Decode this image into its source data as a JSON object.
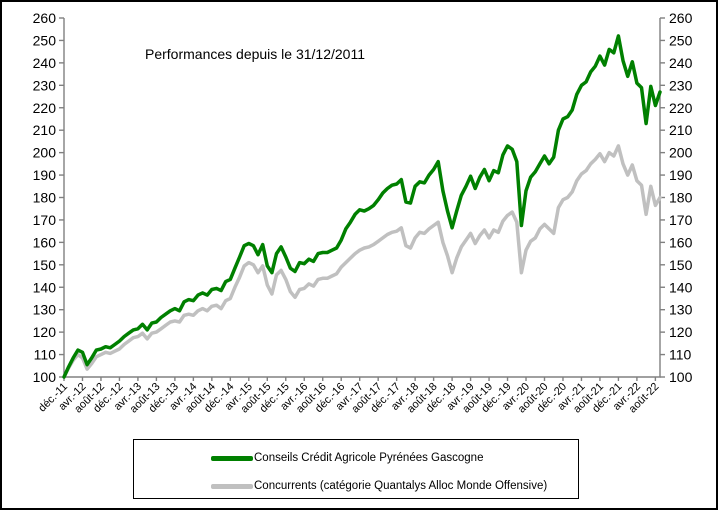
{
  "window": {
    "background": "#ffffff",
    "border_color": "#000000"
  },
  "chart_data": {
    "type": "line",
    "title": "Performances depuis le 31/12/2011",
    "xlabel": "",
    "ylabel": "",
    "ylim": [
      100,
      260
    ],
    "y_tick_step": 10,
    "y_tick_labels": [
      "100",
      "110",
      "120",
      "130",
      "140",
      "150",
      "160",
      "170",
      "180",
      "190",
      "200",
      "210",
      "220",
      "230",
      "240",
      "250",
      "260"
    ],
    "y_axis_sides": "both",
    "grid": false,
    "x_sampling": "monthly (déc. 2011 → sept. 2022), ticks every 4 months",
    "x_label_rotation": -45,
    "x_tick_labels": [
      "déc.-11",
      "avr.-12",
      "août-12",
      "déc.-12",
      "avr.-13",
      "août-13",
      "déc.-13",
      "avr.-14",
      "août-14",
      "déc.-14",
      "avr.-15",
      "août-15",
      "déc.-15",
      "avr.-16",
      "août-16",
      "déc.-16",
      "avr.-17",
      "août-17",
      "déc.-17",
      "avr.-18",
      "août-18",
      "déc.-18",
      "avr.-19",
      "août-19",
      "déc.-19",
      "avr.-20",
      "août-20",
      "déc.-20",
      "avr.-21",
      "août-21",
      "déc.-21",
      "avr.-22",
      "août-22"
    ],
    "legend_position": "bottom-box",
    "axes_color": "#808080",
    "series": [
      {
        "name": "Conseils Crédit Agricole Pyrénées Gascogne",
        "color": "#008000",
        "line_width": 3.5,
        "values": [
          100,
          104.5,
          108.5,
          112,
          111,
          105.5,
          108.5,
          112,
          112.5,
          113.5,
          113,
          114.5,
          116,
          118,
          119.5,
          121,
          121.5,
          123.5,
          121,
          124,
          124.5,
          126.5,
          128,
          129.5,
          130.5,
          129.5,
          133.5,
          134.5,
          134,
          136.5,
          137.5,
          136.5,
          139,
          139.5,
          138.5,
          142.5,
          143.5,
          148.5,
          153.5,
          158.5,
          159.5,
          158.5,
          154.5,
          159,
          149.5,
          146.5,
          155,
          158,
          153.5,
          148.5,
          147,
          151,
          150.5,
          152.5,
          151.5,
          155,
          155.5,
          155.5,
          156.5,
          157.5,
          161,
          166,
          169,
          172.5,
          174.5,
          174,
          175,
          176.5,
          179,
          182,
          184,
          185.5,
          186,
          188,
          178,
          177.5,
          185,
          187,
          186.5,
          190,
          192.5,
          196,
          183,
          174,
          166.5,
          174,
          181,
          185,
          189.5,
          184,
          189,
          192.5,
          187.5,
          192,
          191,
          199,
          203,
          201.5,
          196,
          167.5,
          183,
          189,
          191.5,
          195,
          198.5,
          195,
          198,
          210,
          215,
          216,
          219,
          226,
          230,
          231.5,
          236,
          238.5,
          243,
          239,
          246,
          244.5,
          252,
          241,
          234,
          240.5,
          231,
          229,
          213,
          229.5,
          221,
          227
        ]
      },
      {
        "name": "Concurrents (catégorie Quantalys Alloc Monde Offensive)",
        "color": "#c0c0c0",
        "line_width": 3.5,
        "values": [
          100,
          104,
          107.5,
          110,
          108.5,
          103.5,
          106,
          109,
          110,
          111,
          110.5,
          111.5,
          112.5,
          114.5,
          116,
          117.5,
          118,
          119.5,
          117,
          119.5,
          120,
          121.5,
          123,
          124.5,
          125,
          124.5,
          127.5,
          128,
          127.5,
          129.5,
          130.5,
          129.5,
          131.5,
          132,
          130.5,
          134,
          135,
          140,
          144.5,
          149.5,
          151,
          150,
          146.5,
          149.5,
          141,
          137,
          145.5,
          147.5,
          143.5,
          138,
          135.5,
          139,
          139.5,
          141.5,
          140.5,
          143.5,
          144,
          144,
          145,
          146,
          149,
          151,
          153,
          155,
          156.5,
          157.5,
          158,
          159,
          160.5,
          162,
          163.5,
          164.5,
          165,
          166.5,
          158.5,
          157.5,
          162,
          164.5,
          164,
          166,
          167.5,
          169,
          160,
          154,
          146.5,
          153,
          158,
          161,
          164,
          159.5,
          163,
          165.5,
          162,
          165.5,
          164.5,
          169.5,
          172,
          173.5,
          169,
          146.5,
          156.5,
          160.5,
          162,
          166,
          168,
          166,
          164,
          175.5,
          179,
          180,
          182.5,
          187.5,
          190.5,
          192,
          195,
          197,
          199.5,
          196,
          200,
          198.5,
          203,
          195,
          190,
          194.5,
          187.5,
          185.5,
          172.5,
          185,
          176.5,
          180
        ]
      }
    ]
  }
}
